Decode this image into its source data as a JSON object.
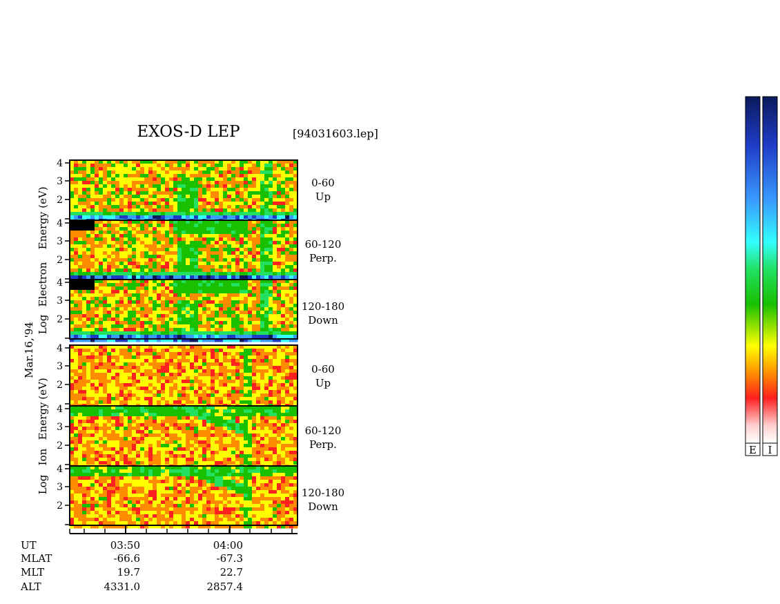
{
  "title": "EXOS-D LEP",
  "file_label": "[94031603.lep]",
  "date_label": "Mar.16,'94",
  "electron_axis_label": [
    "Log",
    "Electron",
    "Energy",
    "(eV)"
  ],
  "ion_axis_label": [
    "Log",
    "Ion",
    "Energy",
    "(eV)"
  ],
  "y_ticks": [
    "4",
    "3",
    "2"
  ],
  "panels": [
    {
      "species": "electron",
      "angle": "0-60",
      "direction": "Up"
    },
    {
      "species": "electron",
      "angle": "60-120",
      "direction": "Perp."
    },
    {
      "species": "electron",
      "angle": "120-180",
      "direction": "Down"
    },
    {
      "species": "ion",
      "angle": "0-60",
      "direction": "Up"
    },
    {
      "species": "ion",
      "angle": "60-120",
      "direction": "Perp."
    },
    {
      "species": "ion",
      "angle": "120-180",
      "direction": "Down"
    }
  ],
  "colorbar_labels": [
    "E",
    "I"
  ],
  "colors": {
    "colorbar": [
      "#0a1a5c",
      "#1f3cc8",
      "#3a9bff",
      "#33ffff",
      "#22e060",
      "#19c000",
      "#ffff00",
      "#ff8c00",
      "#ff2020",
      "#ffd0d0",
      "#ffffff"
    ]
  },
  "ephemeris": {
    "row_labels": [
      "UT",
      "MLAT",
      "MLT",
      "ALT"
    ],
    "columns": [
      {
        "UT": "03:50",
        "MLAT": "-66.6",
        "MLT": "19.7",
        "ALT": "4331.0"
      },
      {
        "UT": "04:00",
        "MLAT": "-67.3",
        "MLT": "22.7",
        "ALT": "2857.4"
      }
    ]
  },
  "chart_data": {
    "type": "heatmap",
    "title": "EXOS-D LEP",
    "xlabel": "UT",
    "ylabel": "Log Energy (eV)",
    "x_tick_labels": [
      "03:50",
      "04:00"
    ],
    "ylim": [
      1,
      4
    ],
    "series": [
      {
        "name": "Electron 0-60 Up"
      },
      {
        "name": "Electron 60-120 Perp."
      },
      {
        "name": "Electron 120-180 Down"
      },
      {
        "name": "Ion 0-60 Up"
      },
      {
        "name": "Ion 60-120 Perp."
      },
      {
        "name": "Ion 120-180 Down"
      }
    ]
  }
}
